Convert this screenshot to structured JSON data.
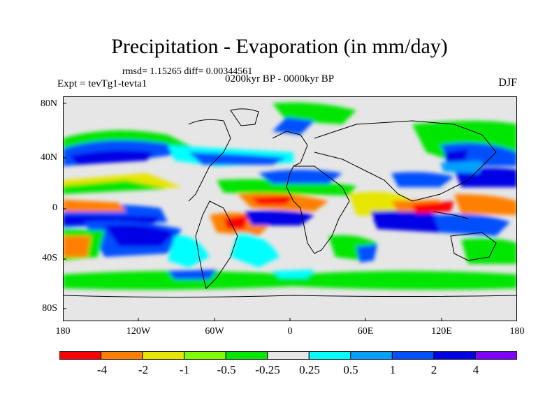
{
  "title": "Precipitation - Evaporation (in mm/day)",
  "stats": "rmsd= 1.15265 diff= 0.00344561",
  "experiment": "Expt = tevTg1-tevta1",
  "period": "0200kyr BP - 0000kyr BP",
  "season": "DJF",
  "map": {
    "lat_labels": [
      "80N",
      "40N",
      "0",
      "40S",
      "80S"
    ],
    "lon_labels": [
      "180",
      "120W",
      "60W",
      "0",
      "60E",
      "120E",
      "180"
    ],
    "lat_range": [
      -90,
      90
    ],
    "lon_range": [
      -180,
      180
    ]
  },
  "colorbar": {
    "colors": [
      "#ff0000",
      "#ff8000",
      "#e6e600",
      "#80ff00",
      "#00e600",
      "#e6e6e6",
      "#00ffff",
      "#00a0ff",
      "#0050ff",
      "#0000e6",
      "#8000ff"
    ],
    "labels": [
      "-4",
      "-2",
      "-1",
      "-0.5",
      "-0.25",
      "0.25",
      "0.5",
      "1",
      "2",
      "4"
    ]
  }
}
